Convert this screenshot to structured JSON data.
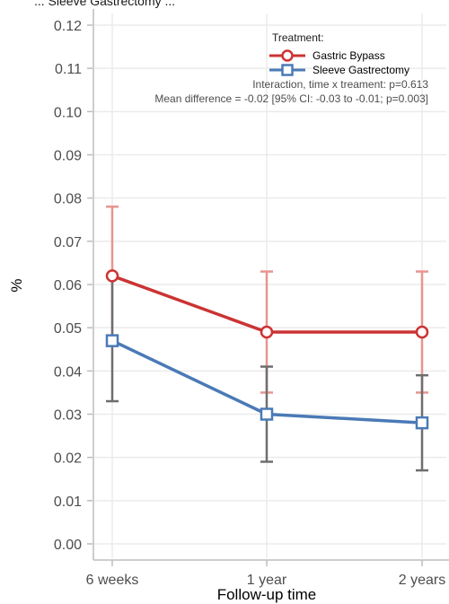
{
  "chart_data": {
    "type": "line",
    "header_fragment": "... Sleeve Gastrectomy ...",
    "xlabel": "Follow-up time",
    "ylabel": "%",
    "categories": [
      "6 weeks",
      "1 year",
      "2 years"
    ],
    "ylim": [
      0,
      0.12
    ],
    "yticks": [
      "0.00",
      "0.01",
      "0.02",
      "0.03",
      "0.04",
      "0.05",
      "0.06",
      "0.07",
      "0.08",
      "0.09",
      "0.10",
      "0.11",
      "0.12"
    ],
    "grid": true,
    "legend_title": "Treatment:",
    "legend_position": "top-right",
    "series": [
      {
        "name": "Gastric Bypass",
        "color": "#cc3333",
        "error_color": "#e8948f",
        "marker": "circle",
        "values": [
          0.062,
          0.049,
          0.049
        ],
        "lower": [
          0.047,
          0.035,
          0.035
        ],
        "upper": [
          0.078,
          0.063,
          0.063
        ]
      },
      {
        "name": "Sleeve Gastrectomy",
        "color": "#4a7ab6",
        "error_color": "#6e6e6e",
        "marker": "square",
        "values": [
          0.047,
          0.03,
          0.028
        ],
        "lower": [
          0.033,
          0.019,
          0.017
        ],
        "upper": [
          0.062,
          0.041,
          0.039
        ]
      }
    ],
    "annotations": [
      "Interaction, time x treament: p=0.613",
      "Mean difference = -0.02 [95% CI: -0.03 to -0.01; p=0.003]"
    ]
  }
}
